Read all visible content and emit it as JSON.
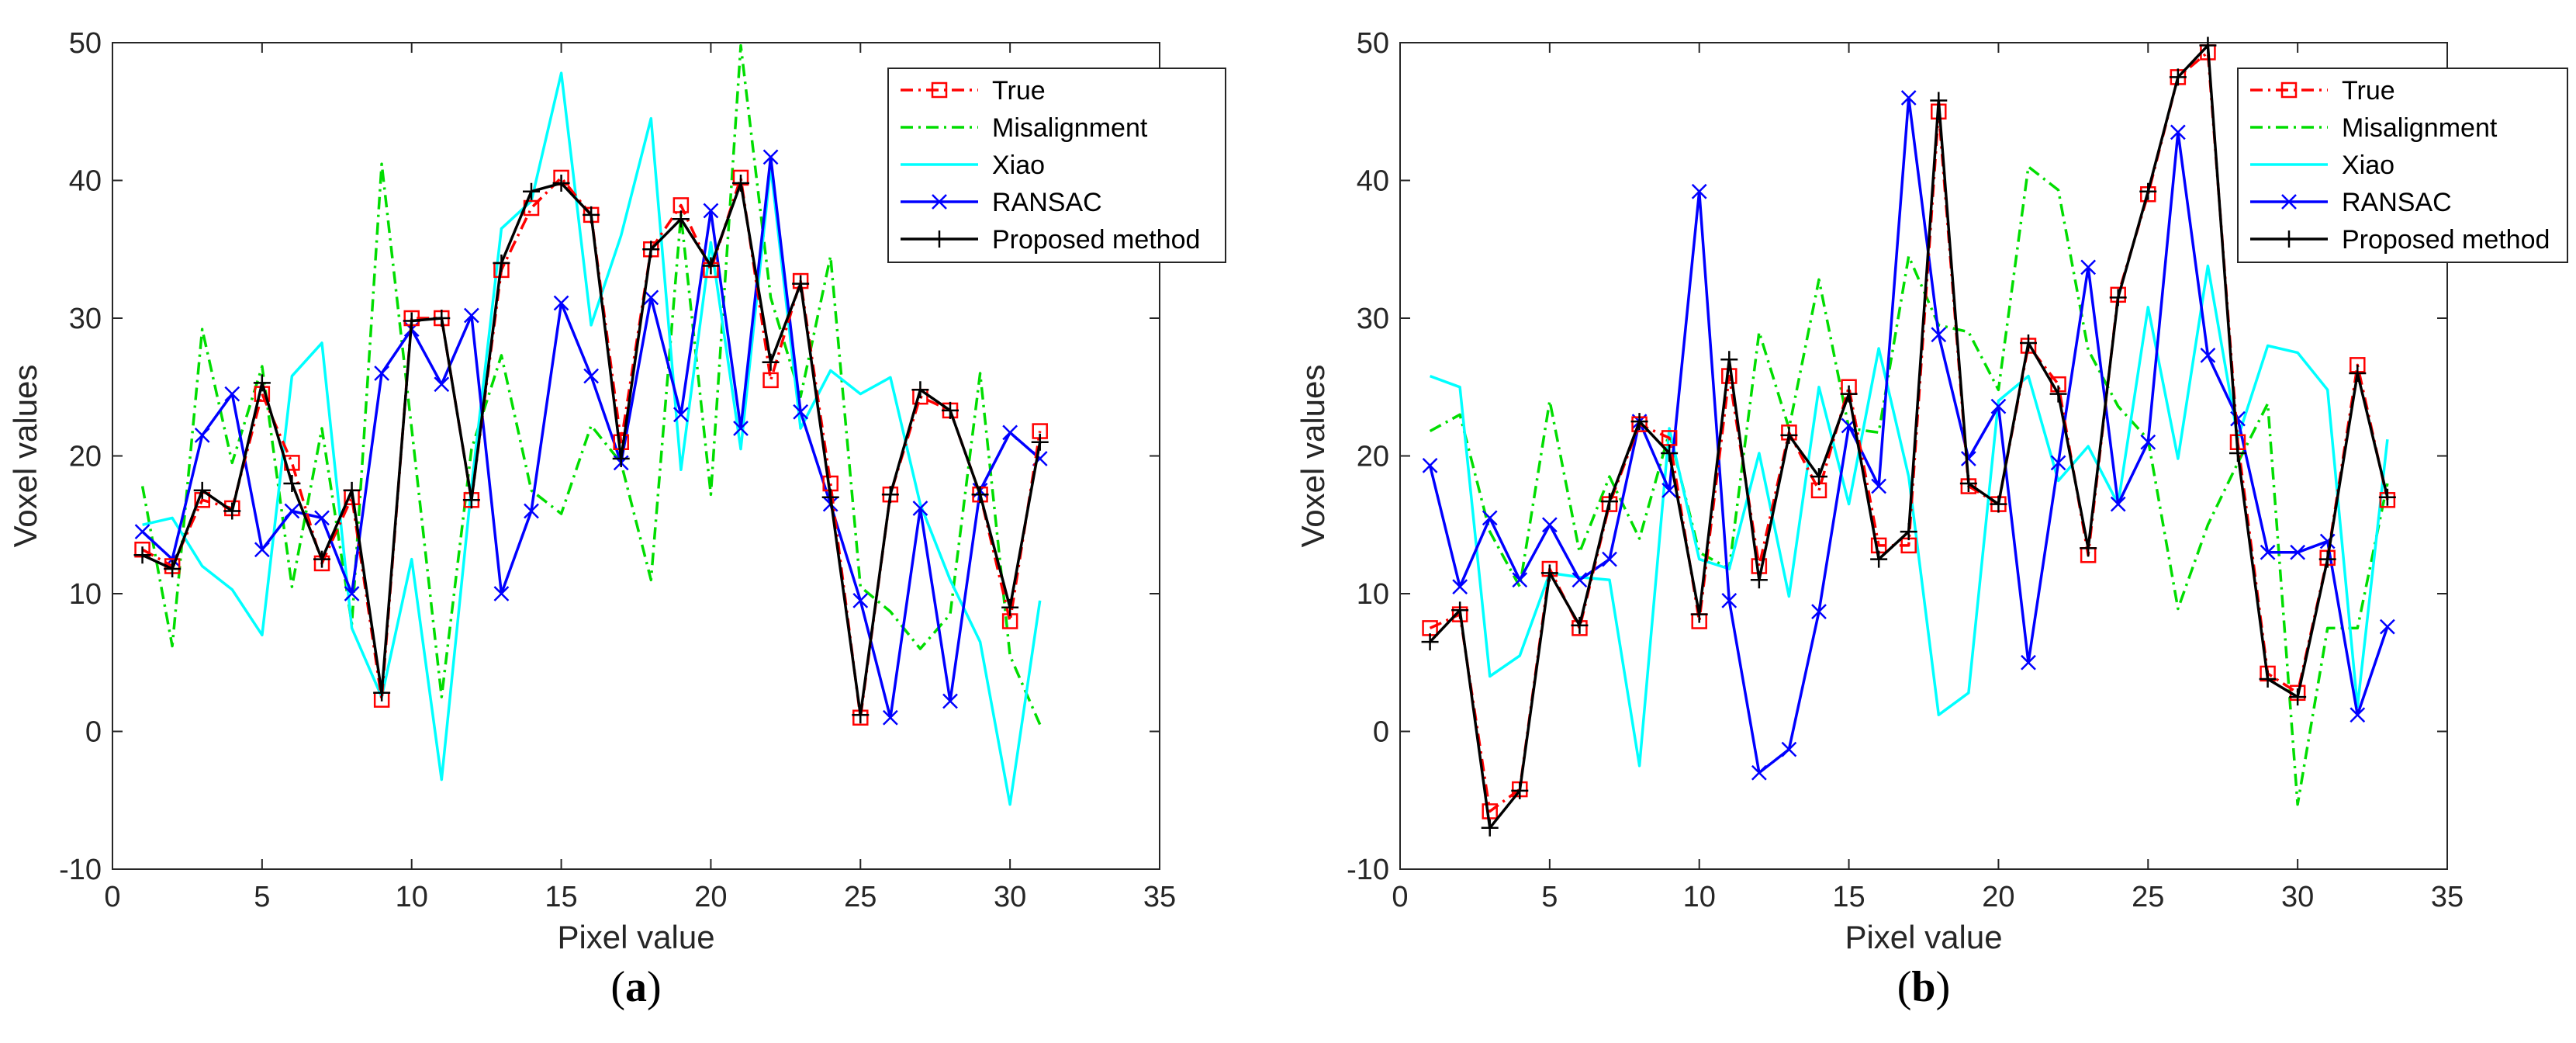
{
  "chart_data": [
    {
      "type": "line",
      "panel_label": "a",
      "xlabel": "Pixel value",
      "ylabel": "Voxel values",
      "xlim": [
        0,
        35
      ],
      "ylim": [
        -10,
        50
      ],
      "xticks": [
        0,
        5,
        10,
        15,
        20,
        25,
        30,
        35
      ],
      "yticks": [
        -10,
        0,
        10,
        20,
        30,
        40,
        50
      ],
      "legend_position": "top-right",
      "x": [
        1,
        2,
        3,
        4,
        5,
        6,
        7,
        8,
        9,
        10,
        11,
        12,
        13,
        14,
        15,
        16,
        17,
        18,
        19,
        20,
        21,
        22,
        23,
        24,
        25,
        26,
        27,
        28,
        29,
        30,
        31
      ],
      "series": [
        {
          "name": "True",
          "color": "#ff0000",
          "style": "dashdot",
          "marker": "square",
          "values": [
            13.2,
            12,
            16.8,
            16.2,
            24.5,
            19.5,
            12.2,
            17,
            2.3,
            30,
            30,
            16.8,
            33.5,
            38,
            40.2,
            37.5,
            21,
            35,
            38.2,
            33.5,
            40.2,
            25.5,
            32.7,
            18,
            1,
            17.2,
            24.3,
            23.3,
            17.2,
            8,
            21.8
          ]
        },
        {
          "name": "Misalignment",
          "color": "#00dd00",
          "style": "dashdot",
          "marker": "none",
          "values": [
            17.8,
            6.2,
            29.2,
            19.5,
            26.5,
            10.5,
            22,
            7.8,
            41.2,
            22,
            2.5,
            20.5,
            27.3,
            17.5,
            15.8,
            22.2,
            19.5,
            11,
            37.5,
            17.2,
            49.8,
            31.5,
            24.3,
            34.5,
            10.5,
            8.7,
            6,
            8.5,
            26,
            5.5,
            0.5
          ]
        },
        {
          "name": "Xiao",
          "color": "#00ffff",
          "style": "solid",
          "marker": "none",
          "values": [
            15,
            15.5,
            12,
            10.3,
            7,
            25.8,
            28.2,
            7.5,
            2.5,
            12.5,
            -3.5,
            17.8,
            36.5,
            38.5,
            47.8,
            29.5,
            36,
            44.5,
            19,
            35.5,
            20.5,
            41,
            22,
            26.2,
            24.5,
            25.7,
            16.5,
            11,
            6.5,
            -5.3,
            9.5
          ]
        },
        {
          "name": "RANSAC",
          "color": "#0000ff",
          "style": "solid",
          "marker": "x",
          "values": [
            14.5,
            12.5,
            21.5,
            24.5,
            13.2,
            16,
            15.5,
            10,
            26,
            29.2,
            25.2,
            30.2,
            10,
            16,
            31.1,
            25.8,
            19.5,
            31.5,
            23,
            37.8,
            22,
            41.7,
            23.2,
            16.5,
            9.5,
            1,
            16.2,
            2.2,
            17.5,
            21.7,
            19.8
          ]
        },
        {
          "name": "Proposed method",
          "color": "#000000",
          "style": "solid",
          "marker": "plus",
          "values": [
            12.8,
            11.8,
            17.5,
            16,
            25.3,
            18,
            12.5,
            17.5,
            2.8,
            29.8,
            30,
            16.8,
            34,
            39.2,
            39.8,
            37.5,
            19.8,
            35,
            37.2,
            33.8,
            39.8,
            26.8,
            32.5,
            17,
            1.2,
            17.2,
            24.8,
            23.3,
            17.2,
            9,
            21
          ]
        }
      ]
    },
    {
      "type": "line",
      "panel_label": "b",
      "xlabel": "Pixel value",
      "ylabel": "Voxel values",
      "xlim": [
        0,
        35
      ],
      "ylim": [
        -10,
        50
      ],
      "xticks": [
        0,
        5,
        10,
        15,
        20,
        25,
        30,
        35
      ],
      "yticks": [
        -10,
        0,
        10,
        20,
        30,
        40,
        50
      ],
      "legend_position": "top-right",
      "x": [
        1,
        2,
        3,
        4,
        5,
        6,
        7,
        8,
        9,
        10,
        11,
        12,
        13,
        14,
        15,
        16,
        17,
        18,
        19,
        20,
        21,
        22,
        23,
        24,
        25,
        26,
        27,
        28,
        29,
        30,
        31,
        32,
        33
      ],
      "series": [
        {
          "name": "True",
          "color": "#ff0000",
          "style": "dashdot",
          "marker": "square",
          "values": [
            7.5,
            8.5,
            -5.8,
            -4.2,
            11.8,
            7.5,
            16.5,
            22.3,
            21.3,
            8,
            25.8,
            12,
            21.7,
            17.5,
            25,
            13.5,
            13.5,
            45,
            17.8,
            16.5,
            28,
            25.2,
            12.8,
            31.7,
            39,
            47.5,
            49.3,
            21,
            4.2,
            2.8,
            12.6,
            26.6,
            16.8
          ]
        },
        {
          "name": "Misalignment",
          "color": "#00dd00",
          "style": "dashdot",
          "marker": "none",
          "values": [
            21.8,
            23,
            14.5,
            10.5,
            24,
            13,
            18.5,
            14,
            21.7,
            13,
            11.8,
            29,
            22,
            32.8,
            22,
            21.7,
            34.5,
            29.5,
            29,
            24.8,
            41,
            39.3,
            27.7,
            23.6,
            21.2,
            8.9,
            15,
            19.5,
            23.8,
            -5.3,
            7.5,
            7.5,
            18
          ]
        },
        {
          "name": "Xiao",
          "color": "#00ffff",
          "style": "solid",
          "marker": "none",
          "values": [
            25.8,
            25,
            4,
            5.5,
            11.5,
            11.2,
            11,
            -2.5,
            22,
            12.5,
            11.8,
            20.2,
            9.8,
            25,
            16.5,
            27.8,
            18.5,
            1.2,
            2.8,
            24,
            25.8,
            18.2,
            20.7,
            16.5,
            30.8,
            19.8,
            33.8,
            21.3,
            28,
            27.5,
            24.8,
            1.8,
            21.2
          ]
        },
        {
          "name": "RANSAC",
          "color": "#0000ff",
          "style": "solid",
          "marker": "x",
          "values": [
            19.3,
            10.5,
            15.5,
            11,
            15,
            11,
            12.5,
            22.5,
            17.5,
            39.2,
            9.5,
            -3,
            -1.3,
            8.7,
            22.2,
            17.8,
            46,
            28.8,
            19.8,
            23.6,
            5,
            19.5,
            33.7,
            16.5,
            21,
            43.5,
            27.3,
            22.7,
            13,
            13,
            13.8,
            1.2,
            7.6
          ]
        },
        {
          "name": "Proposed method",
          "color": "#000000",
          "style": "solid",
          "marker": "plus",
          "values": [
            6.5,
            8.8,
            -7,
            -4.3,
            11.5,
            7.7,
            16.7,
            22.5,
            20.2,
            8.5,
            27,
            11,
            21.5,
            18.5,
            24.5,
            12.5,
            14.5,
            45.8,
            18,
            16.5,
            28.2,
            24.5,
            13.3,
            31.5,
            39.2,
            47.5,
            49.8,
            20.2,
            3.8,
            2.5,
            12.5,
            26,
            17
          ]
        }
      ]
    }
  ]
}
